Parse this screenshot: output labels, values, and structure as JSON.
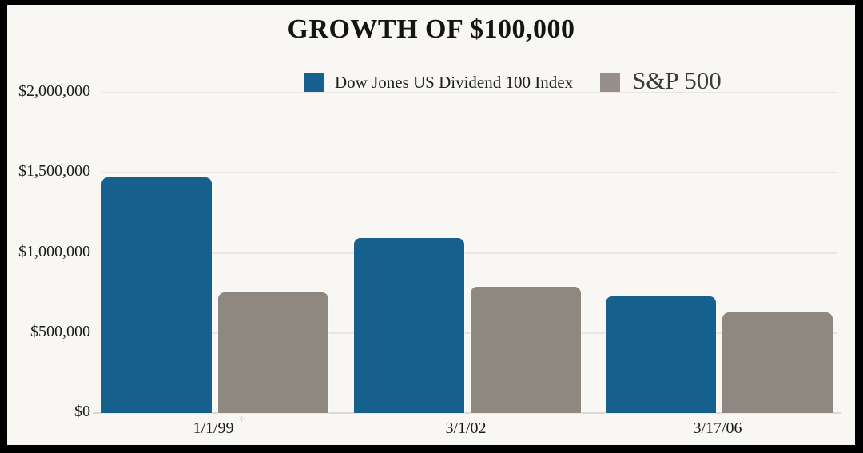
{
  "frame": {
    "border_color": "#000000",
    "canvas_color": "#f8f7f4"
  },
  "title": "GROWTH OF $100,000",
  "legend": {
    "items": [
      {
        "name": "Dow Jones US Dividend 100 Index",
        "color": "#15608d"
      },
      {
        "name": "S&P 500",
        "color": "#97908a"
      }
    ]
  },
  "artifact": {
    "glyph": "⁘"
  },
  "chart_data": {
    "type": "bar",
    "title": "GROWTH OF $100,000",
    "categories": [
      "1/1/99",
      "3/1/02",
      "3/17/06"
    ],
    "series": [
      {
        "name": "Dow Jones US Dividend 100 Index",
        "color": "#15608d",
        "values": [
          1470000,
          1090000,
          730000
        ]
      },
      {
        "name": "S&P 500",
        "color": "#8f8881",
        "values": [
          755000,
          790000,
          630000
        ]
      }
    ],
    "xlabel": "",
    "ylabel": "",
    "ylim": [
      0,
      2000000
    ],
    "ytick_values": [
      0,
      500000,
      1000000,
      1500000,
      2000000
    ],
    "ytick_labels": [
      "$0",
      "$500,000",
      "$1,000,000",
      "$1,500,000",
      "$2,000,000"
    ],
    "grid": true,
    "gridline_color": "#e8e6e2",
    "legend_position": "top-center",
    "background_color": "#f8f7f4"
  }
}
